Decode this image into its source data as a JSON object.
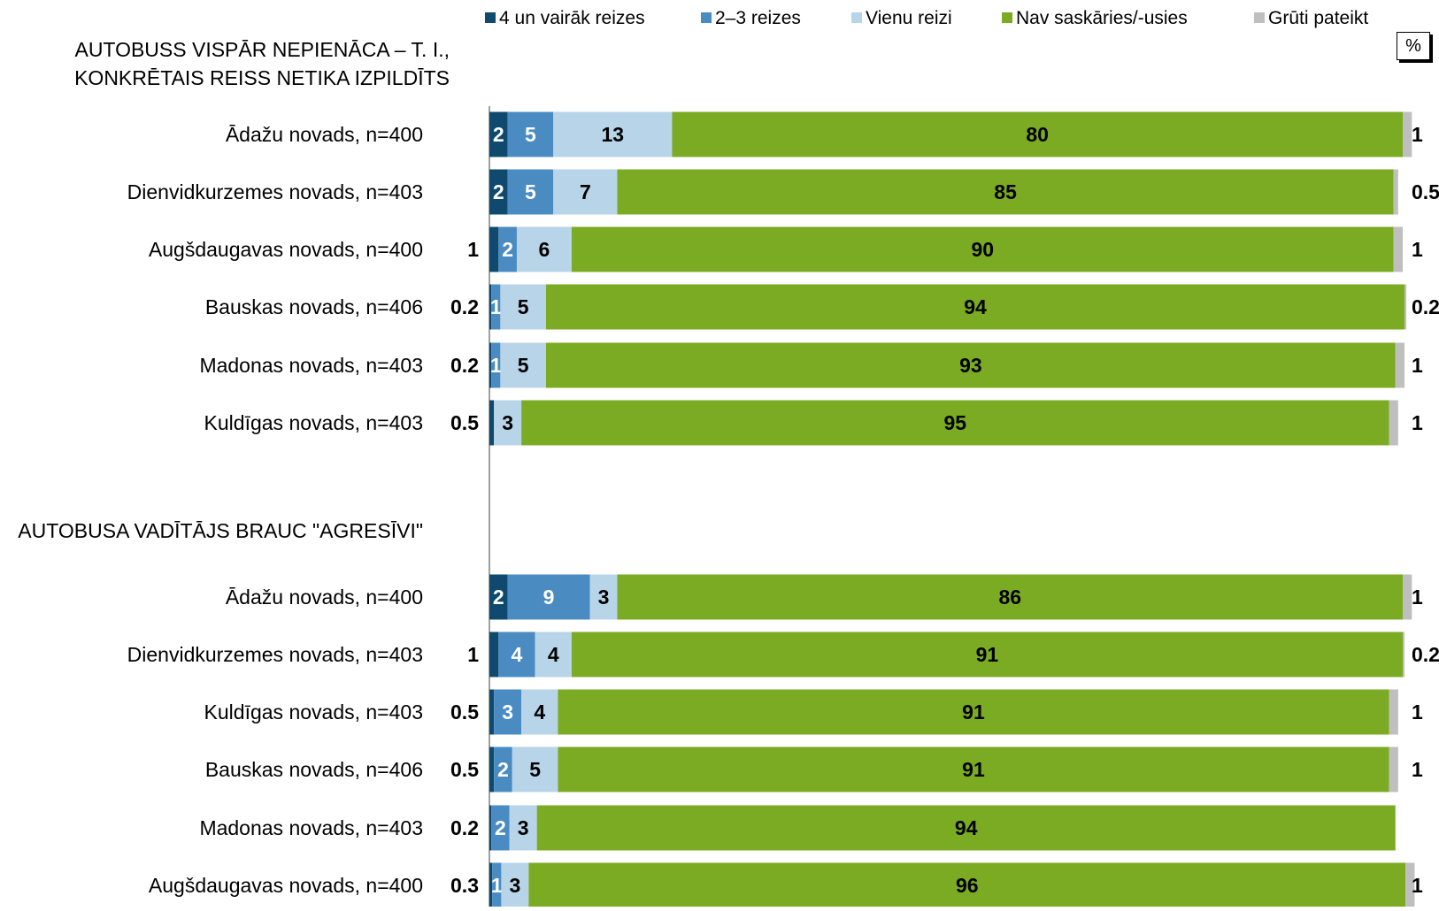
{
  "chart_data": {
    "type": "bar",
    "orientation": "horizontal",
    "stacked": true,
    "xlim": [
      0,
      100
    ],
    "unit_label": "%",
    "legend_position": "top",
    "grid": false,
    "series": [
      {
        "name": "4 un vairāk reizes",
        "color": "#0f4a6e"
      },
      {
        "name": "2–3 reizes",
        "color": "#4a8cc2"
      },
      {
        "name": "Vienu reizi",
        "color": "#b8d4e8"
      },
      {
        "name": "Nav saskāries/-usies",
        "color": "#7aab23"
      },
      {
        "name": "Grūti pateikt",
        "color": "#bfbfbf"
      }
    ],
    "panels": [
      {
        "title": "AUTOBUSS VISPĀR NEPIENĀCA – T. I., KONKRĒTAIS REISS NETIKA IZPILDĪTS",
        "title_lines": [
          "AUTOBUSS VISPĀR NEPIENĀCA – T. I.,",
          "KONKRĒTAIS REISS NETIKA IZPILDĪTS"
        ],
        "categories": [
          "Ādažu novads, n=400",
          "Dienvidkurzemes novads, n=403",
          "Augšdaugavas novads, n=400",
          "Bauskas novads, n=406",
          "Madonas novads, n=403",
          "Kuldīgas novads, n=403"
        ],
        "values": [
          [
            2,
            5,
            13,
            80,
            1
          ],
          [
            2,
            5,
            7,
            85,
            0.5
          ],
          [
            1,
            2,
            6,
            90,
            1
          ],
          [
            0.2,
            1,
            5,
            94,
            0.2
          ],
          [
            0.2,
            1,
            5,
            93,
            1
          ],
          [
            0.5,
            0,
            3,
            95,
            1
          ]
        ]
      },
      {
        "title": "AUTOBUSA VADĪTĀJS BRAUC \"AGRESĪVI\"",
        "title_lines": [
          "AUTOBUSA VADĪTĀJS BRAUC \"AGRESĪVI\""
        ],
        "categories": [
          "Ādažu novads, n=400",
          "Dienvidkurzemes novads, n=403",
          "Kuldīgas novads, n=403",
          "Bauskas novads, n=406",
          "Madonas novads, n=403",
          "Augšdaugavas novads, n=400"
        ],
        "values": [
          [
            2,
            9,
            3,
            86,
            1
          ],
          [
            1,
            4,
            4,
            91,
            0.2
          ],
          [
            0.5,
            3,
            4,
            91,
            1
          ],
          [
            0.5,
            2,
            5,
            91,
            1
          ],
          [
            0.2,
            2,
            3,
            94,
            0
          ],
          [
            0.3,
            1,
            3,
            96,
            1
          ]
        ]
      }
    ]
  }
}
